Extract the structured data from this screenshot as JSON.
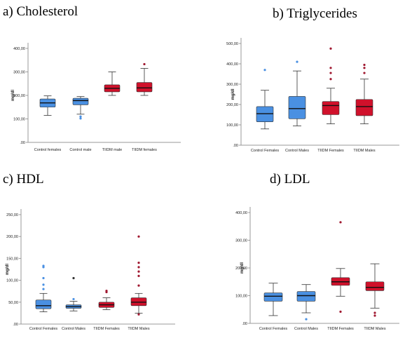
{
  "panels": [
    {
      "label": "a) Cholesterol"
    },
    {
      "label": "b) Triglycerides"
    },
    {
      "label": "c) HDL"
    },
    {
      "label": "d) LDL"
    }
  ],
  "colors": {
    "control": "#4a90e2",
    "tiidm": "#d0112b",
    "axis": "#999999",
    "outlier_dark": "#333333"
  },
  "chart_data": [
    {
      "type": "box",
      "title": "a) Cholesterol",
      "ylabel": "mg/dl",
      "ylim": [
        0,
        400
      ],
      "yticks": [
        0,
        100,
        200,
        300,
        400
      ],
      "ytick_labels": [
        ".00",
        "100,00",
        "200,00",
        "300,00",
        "400,00"
      ],
      "categories": [
        "Control females",
        "Control male",
        "TIIDM male",
        "TIIDM  females"
      ],
      "groups": [
        "control",
        "control",
        "tiidm",
        "tiidm"
      ],
      "boxes": [
        {
          "whisker_low": 115,
          "q1": 150,
          "median": 168,
          "q3": 185,
          "whisker_high": 198,
          "outliers": []
        },
        {
          "whisker_low": 120,
          "q1": 160,
          "median": 178,
          "q3": 188,
          "whisker_high": 195,
          "outliers": [
            110,
            102
          ]
        },
        {
          "whisker_low": 200,
          "q1": 215,
          "median": 230,
          "q3": 245,
          "whisker_high": 300,
          "outliers": []
        },
        {
          "whisker_low": 200,
          "q1": 215,
          "median": 232,
          "q3": 255,
          "whisker_high": 315,
          "outliers": [
            333
          ]
        }
      ]
    },
    {
      "type": "box",
      "title": "b) Triglycerides",
      "ylabel": "mg/dl",
      "ylim": [
        0,
        500
      ],
      "yticks": [
        0,
        100,
        200,
        300,
        400,
        500
      ],
      "ytick_labels": [
        ".00",
        "100,00",
        "200,00",
        "300,00",
        "400,00",
        "500,00"
      ],
      "categories": [
        "Control Females",
        "Control Males",
        "TIIDM Females",
        "TIIDM Males"
      ],
      "groups": [
        "control",
        "control",
        "tiidm",
        "tiidm"
      ],
      "boxes": [
        {
          "whisker_low": 80,
          "q1": 115,
          "median": 155,
          "q3": 190,
          "whisker_high": 270,
          "outliers": [
            370
          ]
        },
        {
          "whisker_low": 95,
          "q1": 130,
          "median": 180,
          "q3": 240,
          "whisker_high": 365,
          "outliers": [
            410
          ]
        },
        {
          "whisker_low": 105,
          "q1": 150,
          "median": 195,
          "q3": 215,
          "whisker_high": 280,
          "outliers": [
            325,
            355,
            380,
            475
          ]
        },
        {
          "whisker_low": 105,
          "q1": 145,
          "median": 190,
          "q3": 225,
          "whisker_high": 325,
          "outliers": [
            355,
            380,
            395
          ]
        }
      ]
    },
    {
      "type": "box",
      "title": "c) HDL",
      "ylabel": "mg/dl",
      "ylim": [
        0,
        250
      ],
      "yticks": [
        0,
        50,
        100,
        150,
        200,
        250
      ],
      "ytick_labels": [
        ".00",
        "50,00",
        "100,00",
        "150,00",
        "200,00",
        "250,00"
      ],
      "categories": [
        "Control Females",
        "Control Males",
        "TIIDM Females",
        "TIIDM Males"
      ],
      "groups": [
        "control",
        "control",
        "tiidm",
        "tiidm"
      ],
      "boxes": [
        {
          "whisker_low": 28,
          "q1": 35,
          "median": 42,
          "q3": 55,
          "whisker_high": 70,
          "outliers": [
            80,
            90,
            105,
            130,
            133
          ]
        },
        {
          "whisker_low": 30,
          "q1": 36,
          "median": 40,
          "q3": 44,
          "whisker_high": 52,
          "outliers": [
            57,
            105
          ]
        },
        {
          "whisker_low": 33,
          "q1": 38,
          "median": 44,
          "q3": 50,
          "whisker_high": 60,
          "outliers": [
            73,
            76
          ]
        },
        {
          "whisker_low": 25,
          "q1": 42,
          "median": 50,
          "q3": 60,
          "whisker_high": 70,
          "outliers": [
            22,
            88,
            110,
            120,
            130,
            140,
            200
          ]
        }
      ]
    },
    {
      "type": "box",
      "title": "d) LDL",
      "ylabel": "mg/dl",
      "ylim": [
        0,
        400
      ],
      "yticks": [
        0,
        100,
        200,
        300,
        400
      ],
      "ytick_labels": [
        ".00",
        "100,00",
        "200,00",
        "300,00",
        "400,00"
      ],
      "categories": [
        "Control Females",
        "Control Males",
        "TIIDM Females",
        "TIIDM Males"
      ],
      "groups": [
        "control",
        "control",
        "tiidm",
        "tiidm"
      ],
      "boxes": [
        {
          "whisker_low": 28,
          "q1": 80,
          "median": 98,
          "q3": 110,
          "whisker_high": 145,
          "outliers": []
        },
        {
          "whisker_low": 38,
          "q1": 80,
          "median": 100,
          "q3": 115,
          "whisker_high": 140,
          "outliers": [
            15
          ]
        },
        {
          "whisker_low": 98,
          "q1": 137,
          "median": 150,
          "q3": 165,
          "whisker_high": 198,
          "outliers": [
            42,
            365
          ]
        },
        {
          "whisker_low": 55,
          "q1": 118,
          "median": 130,
          "q3": 150,
          "whisker_high": 215,
          "outliers": [
            28,
            38
          ]
        }
      ]
    }
  ]
}
